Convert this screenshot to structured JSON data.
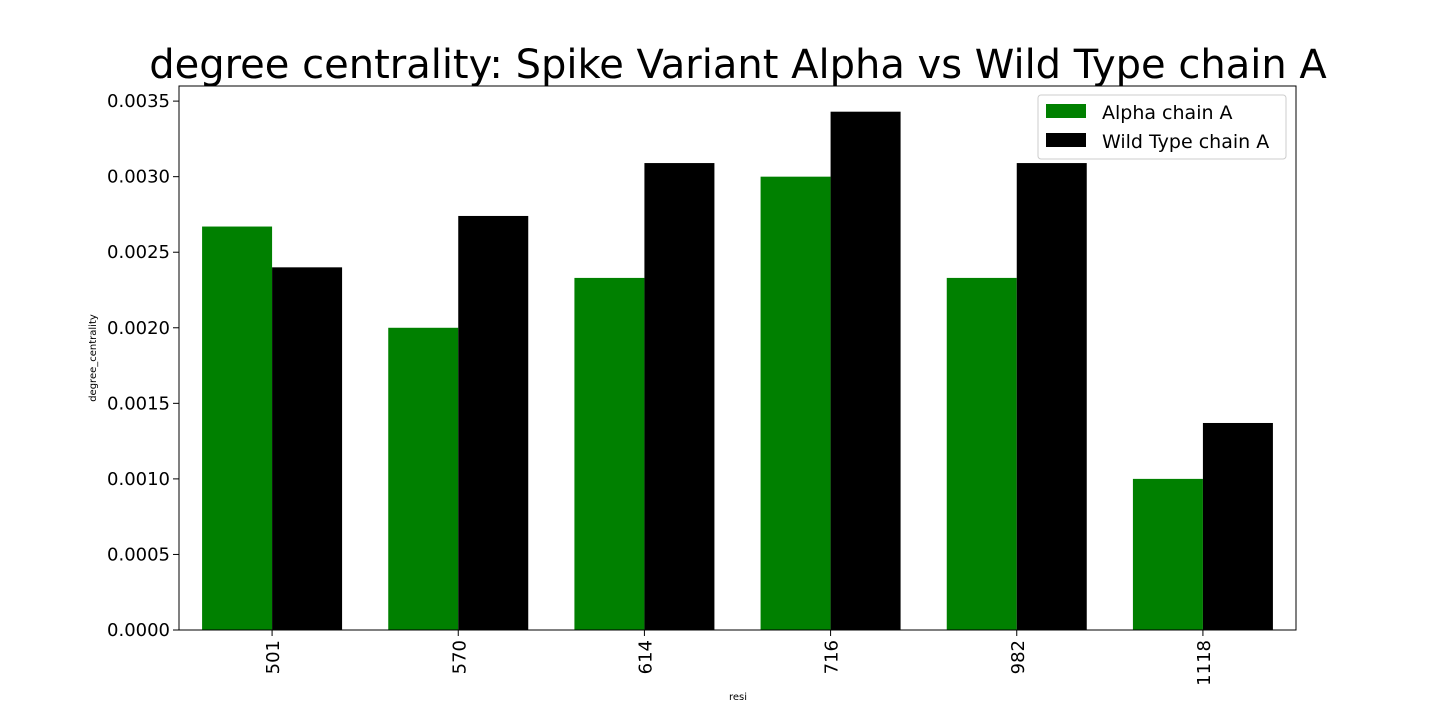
{
  "chart_data": {
    "type": "bar",
    "title": "degree centrality: Spike Variant Alpha vs Wild Type chain A",
    "xlabel": "resi",
    "ylabel": "degree_centrality",
    "categories": [
      "501",
      "570",
      "614",
      "716",
      "982",
      "1118"
    ],
    "series": [
      {
        "name": "Alpha chain A",
        "color": "#008000",
        "values": [
          0.00267,
          0.002,
          0.00233,
          0.003,
          0.00233,
          0.001
        ]
      },
      {
        "name": "Wild Type chain A",
        "color": "#000000",
        "values": [
          0.0024,
          0.00274,
          0.00309,
          0.00343,
          0.00309,
          0.00137
        ]
      }
    ],
    "ylim": [
      0,
      0.0036
    ],
    "yticks": [
      "0.0000",
      "0.0005",
      "0.0010",
      "0.0015",
      "0.0020",
      "0.0025",
      "0.0030",
      "0.0035"
    ],
    "legend_position": "top-right",
    "grid": false
  }
}
